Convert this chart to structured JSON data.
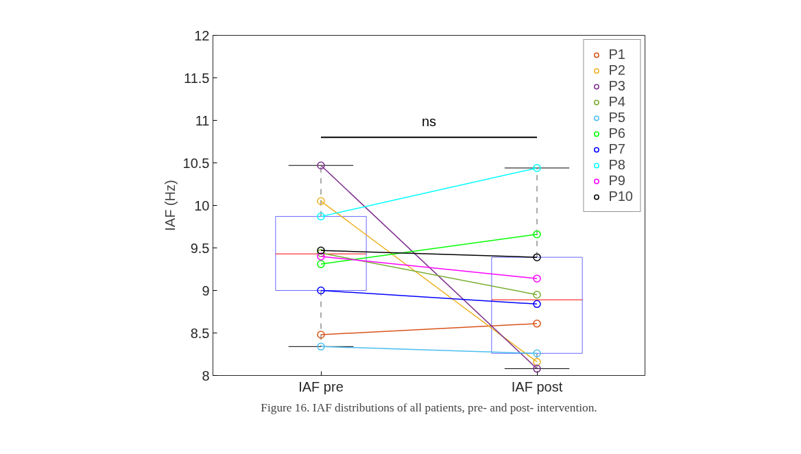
{
  "chart_data": {
    "type": "box",
    "categories": [
      "IAF pre",
      "IAF post"
    ],
    "ylabel": "IAF (Hz)",
    "ylim": [
      8,
      12
    ],
    "yticks": [
      8,
      8.5,
      9,
      9.5,
      10,
      10.5,
      11,
      11.5,
      12
    ],
    "grid": false,
    "legend": "top right",
    "marker": "circle",
    "line_style": "solid",
    "annotations": [
      "ns",
      "Figure 16. IAF distributions of all patients, pre- and post- intervention."
    ],
    "series": [
      {
        "color": "#6666ff",
        "boxes": [
          {
            "low": 8.34,
            "q1": 9.0,
            "median": 9.43,
            "q3": 9.87,
            "high": 10.47
          },
          {
            "low": 8.08,
            "q1": 8.26,
            "median": 8.89,
            "q3": 9.39,
            "high": 10.44
          }
        ]
      },
      {
        "type": "line",
        "name": "P1",
        "color": "#d95319",
        "values": [
          8.48,
          8.61
        ]
      },
      {
        "type": "line",
        "name": "P2",
        "color": "#edb120",
        "values": [
          10.05,
          8.16
        ]
      },
      {
        "type": "line",
        "name": "P3",
        "color": "#7e2f8e",
        "values": [
          10.47,
          8.08
        ]
      },
      {
        "type": "line",
        "name": "P4",
        "color": "#77ac30",
        "values": [
          9.44,
          8.95
        ]
      },
      {
        "type": "line",
        "name": "P5",
        "color": "#4dbeee",
        "values": [
          8.34,
          8.26
        ]
      },
      {
        "type": "line",
        "name": "P6",
        "color": "#00ff00",
        "values": [
          9.31,
          9.66
        ]
      },
      {
        "type": "line",
        "name": "P7",
        "color": "#0000ff",
        "values": [
          9.0,
          8.84
        ]
      },
      {
        "type": "line",
        "name": "P8",
        "color": "#00ffff",
        "values": [
          9.87,
          10.44
        ]
      },
      {
        "type": "line",
        "name": "P9",
        "color": "#ff00ff",
        "values": [
          9.4,
          9.14
        ]
      },
      {
        "type": "line",
        "name": "P10",
        "color": "#000000",
        "values": [
          9.47,
          9.39
        ]
      }
    ]
  }
}
